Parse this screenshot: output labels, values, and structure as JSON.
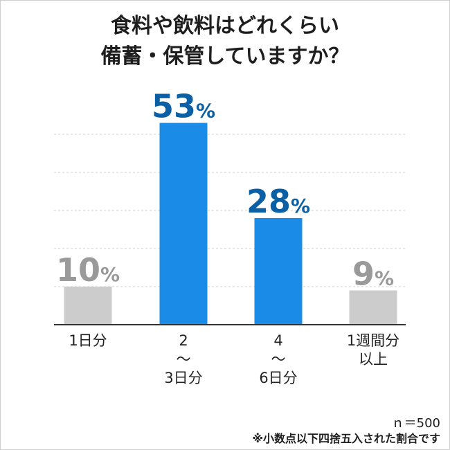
{
  "chart_data": {
    "type": "bar",
    "title_lines": [
      "食料や飲料はどれくらい",
      "備蓄・保管していますか？"
    ],
    "categories": [
      [
        "1日分"
      ],
      [
        "2",
        "〜",
        "3日分"
      ],
      [
        "4",
        "〜",
        "6日分"
      ],
      [
        "1週間分",
        "以上"
      ]
    ],
    "values": [
      10,
      53,
      28,
      9
    ],
    "value_suffix": "%",
    "ylim": [
      0,
      55
    ],
    "grid": true,
    "colors": {
      "highlight": "#1a8be6",
      "muted": "#cccccc",
      "highlight_label": "#0a5fa5",
      "muted_label": "#9a9a9a"
    },
    "highlighted": [
      false,
      true,
      true,
      false
    ]
  },
  "footer": {
    "sample": "ｎ＝500",
    "note": "※小数点以下四捨五入された割合です"
  }
}
